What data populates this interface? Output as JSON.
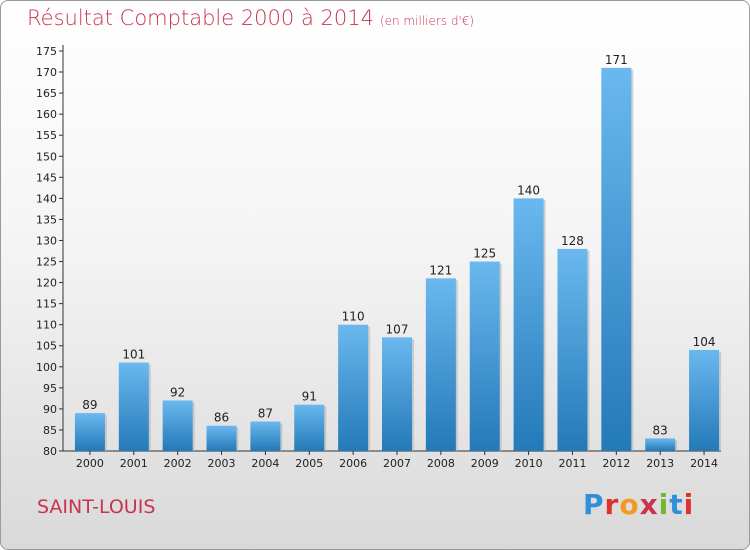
{
  "header": {
    "title": "Résultat Comptable 2000 à 2014",
    "subtitle": "(en milliers d'€)"
  },
  "footer": {
    "place": "SAINT-LOUIS",
    "logo": "Proxiti"
  },
  "colors": {
    "bar_light": "#6ab8ef",
    "bar_dark": "#2479b8",
    "title": "#c8344f"
  },
  "chart_data": {
    "type": "bar",
    "title": "Résultat Comptable 2000 à 2014",
    "subtitle": "(en milliers d'€)",
    "xlabel": "",
    "ylabel": "",
    "categories": [
      "2000",
      "2001",
      "2002",
      "2003",
      "2004",
      "2005",
      "2006",
      "2007",
      "2008",
      "2009",
      "2010",
      "2011",
      "2012",
      "2013",
      "2014"
    ],
    "values": [
      89,
      101,
      92,
      86,
      87,
      91,
      110,
      107,
      121,
      125,
      140,
      128,
      171,
      83,
      104
    ],
    "ylim": [
      80,
      175
    ],
    "ytick_step": 5,
    "grid": false,
    "legend": "none"
  }
}
